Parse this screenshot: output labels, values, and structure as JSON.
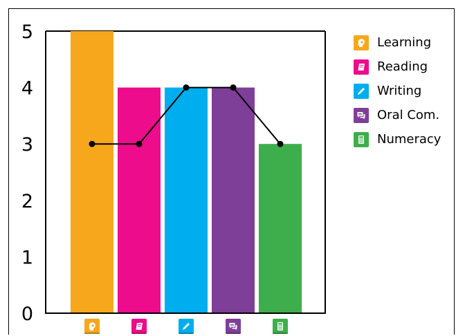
{
  "chart_data": {
    "type": "bar",
    "categories": [
      "Learning",
      "Reading",
      "Writing",
      "Oral Com.",
      "Numeracy"
    ],
    "bar_values": [
      5,
      4,
      4,
      4,
      3
    ],
    "line_values": [
      3,
      3,
      4,
      4,
      3
    ],
    "colors": [
      "#F6A71C",
      "#EC0C8C",
      "#00AEEF",
      "#7E3F98",
      "#3DAE4B"
    ],
    "icons": [
      "lightbulb-head-icon",
      "book-icon",
      "pencil-icon",
      "speech-bubbles-icon",
      "calculator-icon"
    ],
    "ylim": [
      0,
      5
    ],
    "yticks": [
      "0",
      "1",
      "2",
      "3",
      "4",
      "5"
    ],
    "grid": false,
    "legend_position": "right"
  }
}
